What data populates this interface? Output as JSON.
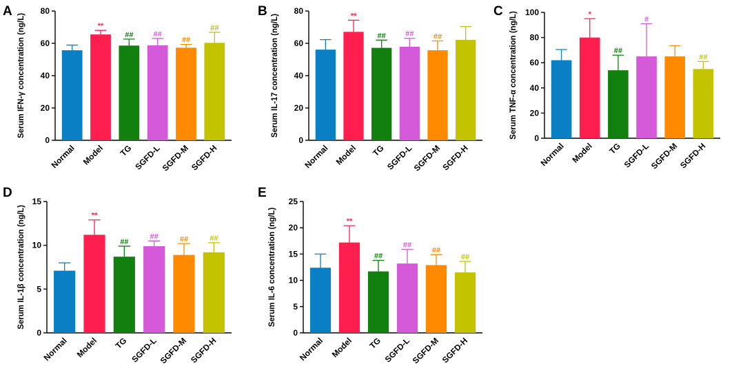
{
  "chart_data": [
    {
      "type": "bar",
      "panel": "A",
      "ylabel": "Serum IFN-γ concentration (ng/L)",
      "ylim": [
        0,
        80
      ],
      "yticks": [
        0,
        20,
        40,
        60,
        80
      ],
      "categories": [
        "Normal",
        "Model",
        "TG",
        "SGFD-L",
        "SGFD-M",
        "SGFD-H"
      ],
      "values": [
        55.7,
        65.5,
        58.6,
        58.8,
        57.3,
        60.3
      ],
      "errors": [
        3.2,
        2.5,
        4.0,
        4.2,
        2.0,
        6.5
      ],
      "significance": [
        "",
        "**",
        "##",
        "##",
        "##",
        "##"
      ]
    },
    {
      "type": "bar",
      "panel": "B",
      "ylabel": "Serum IL-17 concentration (ng/L)",
      "ylim": [
        0,
        80
      ],
      "yticks": [
        0,
        20,
        40,
        60,
        80
      ],
      "categories": [
        "Normal",
        "Model",
        "TG",
        "SGFD-L",
        "SGFD-M",
        "SGFD-H"
      ],
      "values": [
        56.1,
        67.1,
        57.2,
        57.9,
        55.7,
        62.1
      ],
      "errors": [
        6.2,
        7.2,
        4.8,
        5.2,
        5.8,
        8.3
      ],
      "significance": [
        "",
        "**",
        "##",
        "##",
        "##",
        ""
      ]
    },
    {
      "type": "bar",
      "panel": "C",
      "ylabel": "Serum TNF-α concentration (ng/L)",
      "ylim": [
        0,
        100
      ],
      "yticks": [
        0,
        20,
        40,
        60,
        80,
        100
      ],
      "categories": [
        "Normal",
        "Model",
        "TG",
        "SGFD-L",
        "SGFD-M",
        "SGFD-H"
      ],
      "values": [
        62.0,
        80.0,
        54.0,
        65.0,
        65.0,
        55.0
      ],
      "errors": [
        8.5,
        15.0,
        12.0,
        26.0,
        8.5,
        6.0
      ],
      "significance": [
        "",
        "*",
        "##",
        "#",
        "",
        "##"
      ]
    },
    {
      "type": "bar",
      "panel": "D",
      "ylabel": "Serum IL-1β concentration (ng/L)",
      "ylim": [
        0,
        15
      ],
      "yticks": [
        0,
        5,
        10,
        15
      ],
      "categories": [
        "Normal",
        "Model",
        "TG",
        "SGFD-L",
        "SGFD-M",
        "SGFD-H"
      ],
      "values": [
        7.1,
        11.2,
        8.7,
        9.9,
        8.9,
        9.2
      ],
      "errors": [
        0.9,
        1.7,
        1.2,
        0.6,
        1.3,
        1.1
      ],
      "significance": [
        "",
        "**",
        "##",
        "##",
        "##",
        "##"
      ]
    },
    {
      "type": "bar",
      "panel": "E",
      "ylabel": "Serum IL-6 concentration (ng/L)",
      "ylim": [
        0,
        25
      ],
      "yticks": [
        0,
        5,
        10,
        15,
        20,
        25
      ],
      "categories": [
        "Normal",
        "Model",
        "TG",
        "SGFD-L",
        "SGFD-M",
        "SGFD-H"
      ],
      "values": [
        12.4,
        17.2,
        11.7,
        13.2,
        12.9,
        11.5
      ],
      "errors": [
        2.6,
        3.2,
        2.1,
        2.7,
        2.0,
        2.1
      ],
      "significance": [
        "",
        "**",
        "##",
        "##",
        "##",
        "##"
      ]
    }
  ],
  "colors": {
    "bars": [
      "#0b7fc4",
      "#ff1f4f",
      "#11800f",
      "#d45ada",
      "#ff8a00",
      "#c3c300"
    ],
    "significance": [
      "#000000",
      "#ff1f4f",
      "#11800f",
      "#d45ada",
      "#ff8a00",
      "#c3c300"
    ],
    "axis": "#000000"
  }
}
